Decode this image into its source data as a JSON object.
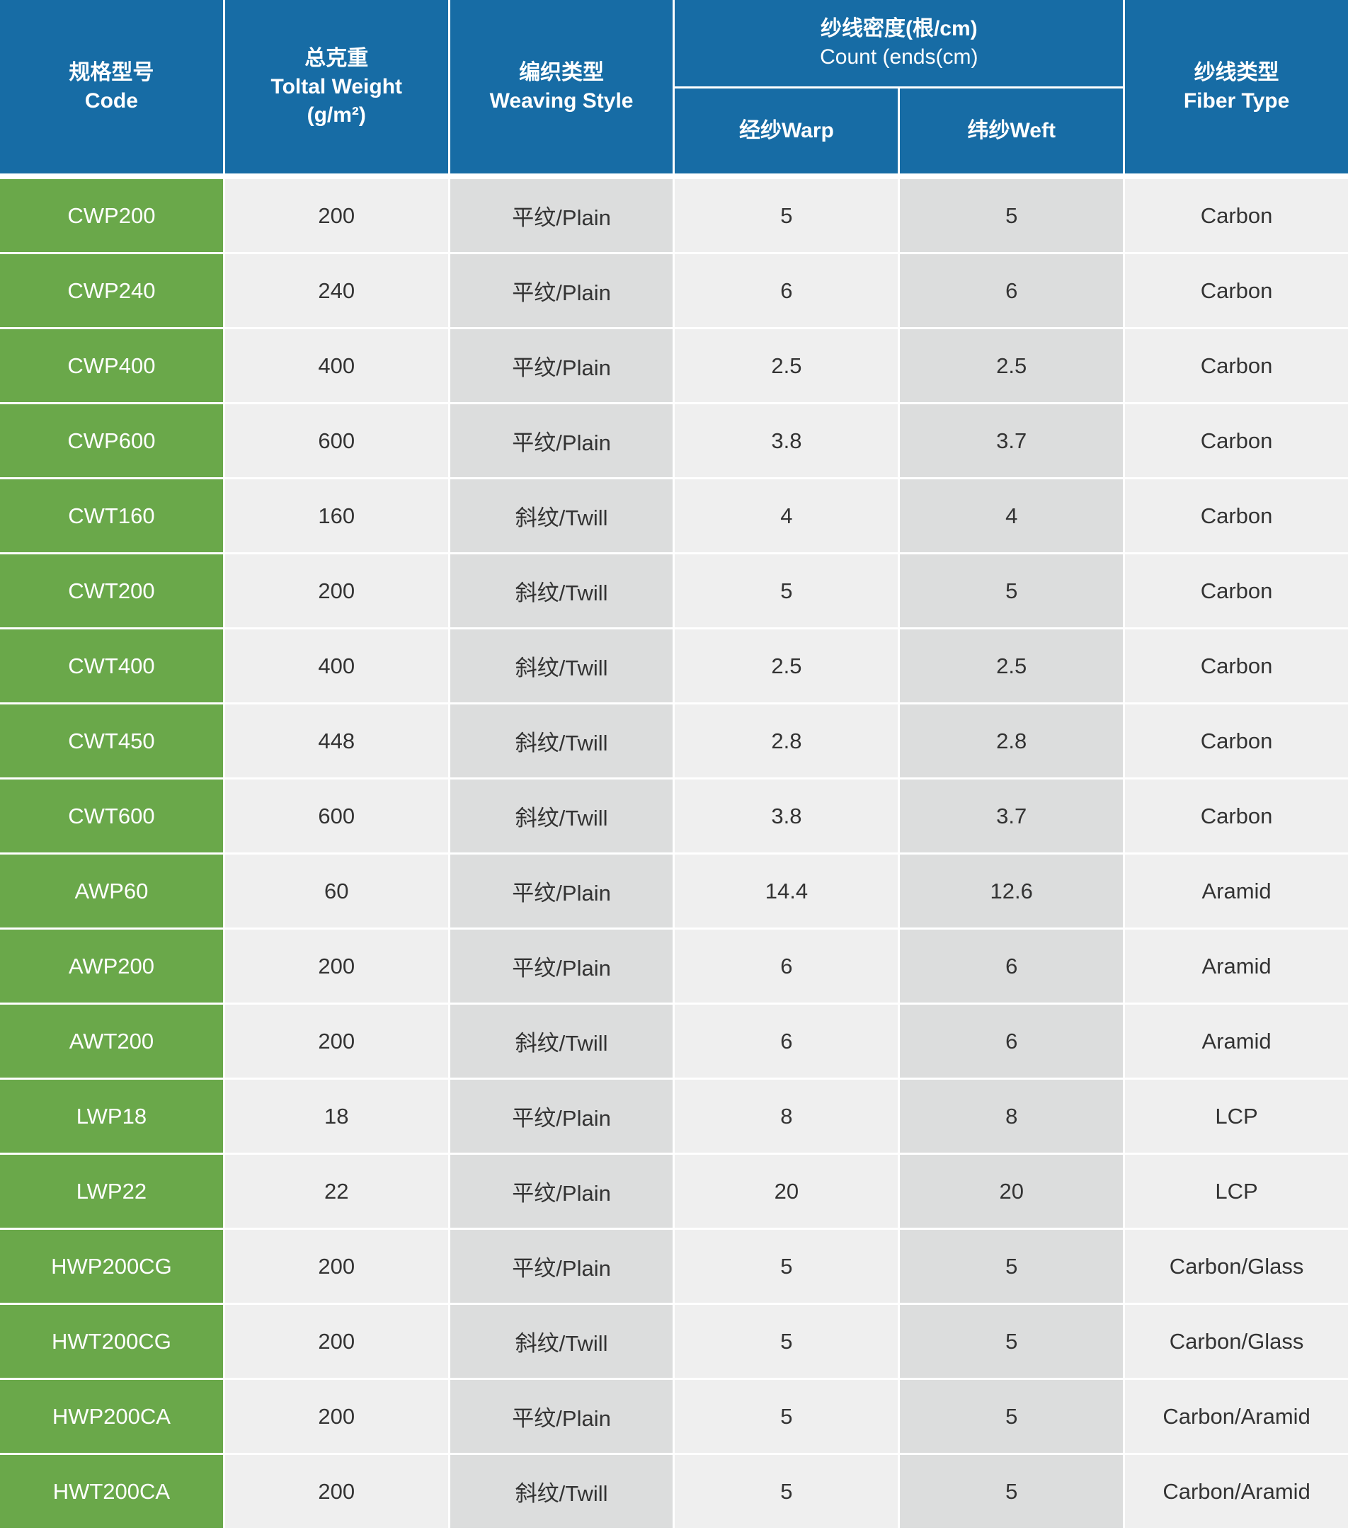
{
  "header": {
    "code": {
      "zh": "规格型号",
      "en": "Code"
    },
    "weight": {
      "zh": "总克重",
      "en": "Toltal Weight",
      "unit": "(g/m²)"
    },
    "weaving": {
      "zh": "编织类型",
      "en": "Weaving Style"
    },
    "count": {
      "zh": "纱线密度(根/cm)",
      "en": "Count (ends(cm)",
      "warp": "经纱Warp",
      "weft": "纬纱Weft"
    },
    "fiber": {
      "zh": "纱线类型",
      "en": "Fiber Type"
    }
  },
  "colors": {
    "header": "#176ca5",
    "code_column": "#6aa84a",
    "light_cell": "#efefef",
    "dark_cell": "#dcdddd"
  },
  "rows": [
    [
      "CWP200",
      "200",
      "平纹/Plain",
      "5",
      "5",
      "Carbon"
    ],
    [
      "CWP240",
      "240",
      "平纹/Plain",
      "6",
      "6",
      "Carbon"
    ],
    [
      "CWP400",
      "400",
      "平纹/Plain",
      "2.5",
      "2.5",
      "Carbon"
    ],
    [
      "CWP600",
      "600",
      "平纹/Plain",
      "3.8",
      "3.7",
      "Carbon"
    ],
    [
      "CWT160",
      "160",
      "斜纹/Twill",
      "4",
      "4",
      "Carbon"
    ],
    [
      "CWT200",
      "200",
      "斜纹/Twill",
      "5",
      "5",
      "Carbon"
    ],
    [
      "CWT400",
      "400",
      "斜纹/Twill",
      "2.5",
      "2.5",
      "Carbon"
    ],
    [
      "CWT450",
      "448",
      "斜纹/Twill",
      "2.8",
      "2.8",
      "Carbon"
    ],
    [
      "CWT600",
      "600",
      "斜纹/Twill",
      "3.8",
      "3.7",
      "Carbon"
    ],
    [
      "AWP60",
      "60",
      "平纹/Plain",
      "14.4",
      "12.6",
      "Aramid"
    ],
    [
      "AWP200",
      "200",
      "平纹/Plain",
      "6",
      "6",
      "Aramid"
    ],
    [
      "AWT200",
      "200",
      "斜纹/Twill",
      "6",
      "6",
      "Aramid"
    ],
    [
      "LWP18",
      "18",
      "平纹/Plain",
      "8",
      "8",
      "LCP"
    ],
    [
      "LWP22",
      "22",
      "平纹/Plain",
      "20",
      "20",
      "LCP"
    ],
    [
      "HWP200CG",
      "200",
      "平纹/Plain",
      "5",
      "5",
      "Carbon/Glass"
    ],
    [
      "HWT200CG",
      "200",
      "斜纹/Twill",
      "5",
      "5",
      "Carbon/Glass"
    ],
    [
      "HWP200CA",
      "200",
      "平纹/Plain",
      "5",
      "5",
      "Carbon/Aramid"
    ],
    [
      "HWT200CA",
      "200",
      "斜纹/Twill",
      "5",
      "5",
      "Carbon/Aramid"
    ]
  ]
}
